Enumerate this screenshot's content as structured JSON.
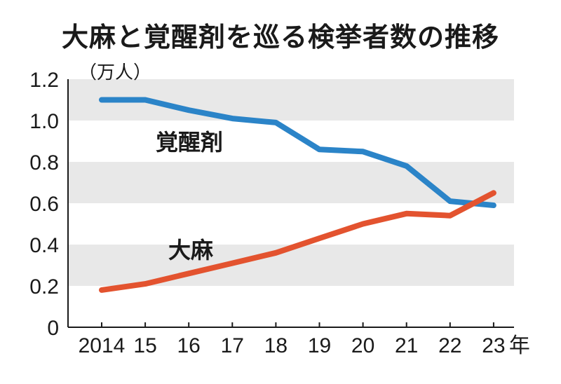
{
  "chart_data": {
    "type": "line",
    "title": "大麻と覚醒剤を巡る検挙者数の推移",
    "unit": "（万人）",
    "x": [
      "2014",
      "15",
      "16",
      "17",
      "18",
      "19",
      "20",
      "21",
      "22",
      "23"
    ],
    "x_suffix": "年",
    "yticks": [
      "0",
      "0.2",
      "0.4",
      "0.6",
      "0.8",
      "1.0",
      "1.2"
    ],
    "ylim": [
      0,
      1.2
    ],
    "series": [
      {
        "name": "覚醒剤",
        "color": "#2b84c8",
        "values": [
          1.1,
          1.1,
          1.05,
          1.01,
          0.99,
          0.86,
          0.85,
          0.78,
          0.61,
          0.59
        ]
      },
      {
        "name": "大麻",
        "color": "#e3532f",
        "values": [
          0.18,
          0.21,
          0.26,
          0.31,
          0.36,
          0.43,
          0.5,
          0.55,
          0.54,
          0.65
        ]
      }
    ],
    "band_color": "#e8e8e8",
    "grid": false,
    "legend": "inline labels"
  }
}
